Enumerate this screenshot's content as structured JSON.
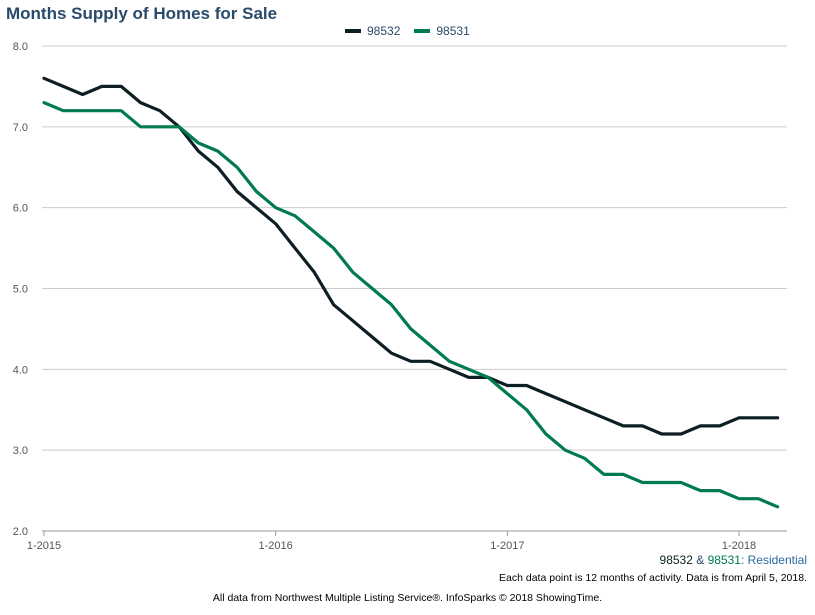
{
  "chart_data": {
    "type": "line",
    "title": "Months Supply of Homes for Sale",
    "xlabel": "",
    "ylabel": "",
    "ylim": [
      2.0,
      8.0
    ],
    "yticks": [
      "2.0",
      "3.0",
      "4.0",
      "5.0",
      "6.0",
      "7.0",
      "8.0"
    ],
    "xticks": [
      "1-2015",
      "1-2016",
      "1-2017",
      "1-2018"
    ],
    "grid": true,
    "legend_position": "top-center",
    "x": [
      "1-2015",
      "2-2015",
      "3-2015",
      "4-2015",
      "5-2015",
      "6-2015",
      "7-2015",
      "8-2015",
      "9-2015",
      "10-2015",
      "11-2015",
      "12-2015",
      "1-2016",
      "2-2016",
      "3-2016",
      "4-2016",
      "5-2016",
      "6-2016",
      "7-2016",
      "8-2016",
      "9-2016",
      "10-2016",
      "11-2016",
      "12-2016",
      "1-2017",
      "2-2017",
      "3-2017",
      "4-2017",
      "5-2017",
      "6-2017",
      "7-2017",
      "8-2017",
      "9-2017",
      "10-2017",
      "11-2017",
      "12-2017",
      "1-2018",
      "2-2018",
      "3-2018"
    ],
    "series": [
      {
        "name": "98532",
        "color": "#0d1f24",
        "values": [
          7.6,
          7.5,
          7.4,
          7.5,
          7.5,
          7.3,
          7.2,
          7.0,
          6.7,
          6.5,
          6.2,
          6.0,
          5.8,
          5.5,
          5.2,
          4.8,
          4.6,
          4.4,
          4.2,
          4.1,
          4.1,
          4.0,
          3.9,
          3.9,
          3.8,
          3.8,
          3.7,
          3.6,
          3.5,
          3.4,
          3.3,
          3.3,
          3.2,
          3.2,
          3.3,
          3.3,
          3.4,
          3.4,
          3.4
        ]
      },
      {
        "name": "98531",
        "color": "#007a4f",
        "values": [
          7.3,
          7.2,
          7.2,
          7.2,
          7.2,
          7.0,
          7.0,
          7.0,
          6.8,
          6.7,
          6.5,
          6.2,
          6.0,
          5.9,
          5.7,
          5.5,
          5.2,
          5.0,
          4.8,
          4.5,
          4.3,
          4.1,
          4.0,
          3.9,
          3.7,
          3.5,
          3.2,
          3.0,
          2.9,
          2.7,
          2.7,
          2.6,
          2.6,
          2.6,
          2.5,
          2.5,
          2.4,
          2.4,
          2.3
        ]
      }
    ]
  },
  "filter": {
    "a": "98532",
    "amp": " & ",
    "b": "98531",
    "rest": ": Residential"
  },
  "note": "Each data point is 12 months of activity. Data is from April 5, 2018.",
  "footer": "All data from Northwest Multiple Listing Service®. InfoSparks © 2018 ShowingTime."
}
